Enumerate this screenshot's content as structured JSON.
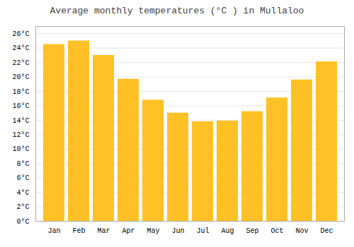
{
  "chart_data": {
    "type": "bar",
    "title": "Average monthly temperatures (°C ) in Mullaloo",
    "categories": [
      "Jan",
      "Feb",
      "Mar",
      "Apr",
      "May",
      "Jun",
      "Jul",
      "Aug",
      "Sep",
      "Oct",
      "Nov",
      "Dec"
    ],
    "values": [
      24.5,
      25.0,
      23.0,
      19.7,
      16.8,
      15.0,
      13.8,
      13.9,
      15.2,
      17.1,
      19.6,
      22.1
    ],
    "color": "#FFC125",
    "ylim": [
      0,
      27
    ],
    "yticks": [
      {
        "value": 0,
        "label": "0°C"
      },
      {
        "value": 2,
        "label": "2°C"
      },
      {
        "value": 4,
        "label": "4°C"
      },
      {
        "value": 6,
        "label": "6°C"
      },
      {
        "value": 8,
        "label": "8°C"
      },
      {
        "value": 10,
        "label": "10°C"
      },
      {
        "value": 12,
        "label": "12°C"
      },
      {
        "value": 14,
        "label": "14°C"
      },
      {
        "value": 16,
        "label": "16°C"
      },
      {
        "value": 18,
        "label": "18°C"
      },
      {
        "value": 20,
        "label": "20°C"
      },
      {
        "value": 22,
        "label": "22°C"
      },
      {
        "value": 24,
        "label": "24°C"
      },
      {
        "value": 26,
        "label": "26°C"
      }
    ],
    "grid": true
  }
}
